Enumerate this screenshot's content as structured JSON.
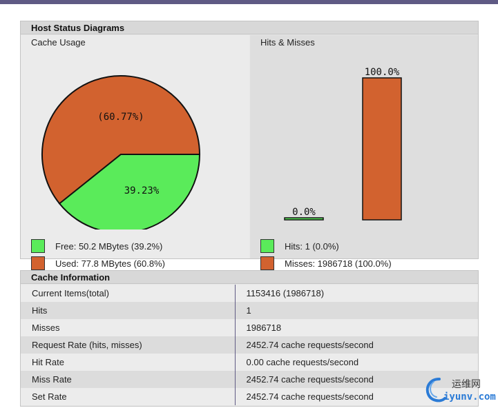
{
  "diagrams": {
    "title": "Host Status Diagrams",
    "cache_usage": {
      "title": "Cache Usage",
      "used_label": "(60.77%)",
      "free_label": "39.23%",
      "legend_free": "Free: 50.2 MBytes (39.2%)",
      "legend_used": "Used: 77.8 MBytes (60.8%)"
    },
    "hits_misses": {
      "title": "Hits & Misses",
      "hits_label": "0.0%",
      "misses_label": "100.0%",
      "legend_hits": "Hits: 1 (0.0%)",
      "legend_misses": "Misses: 1986718 (100.0%)"
    },
    "colors": {
      "used": "#d2622f",
      "free": "#5aeb5a"
    }
  },
  "cache_info": {
    "title": "Cache Information",
    "rows": [
      {
        "key": "Current Items(total)",
        "value": "1153416 (1986718)"
      },
      {
        "key": "Hits",
        "value": "1"
      },
      {
        "key": "Misses",
        "value": "1986718"
      },
      {
        "key": "Request Rate (hits, misses)",
        "value": "2452.74 cache requests/second"
      },
      {
        "key": "Hit Rate",
        "value": "0.00 cache requests/second"
      },
      {
        "key": "Miss Rate",
        "value": "2452.74 cache requests/second"
      },
      {
        "key": "Set Rate",
        "value": "2452.74 cache requests/second"
      }
    ]
  },
  "watermark": {
    "text_cn": "运维网",
    "text_url": "iyunv.com"
  },
  "chart_data": [
    {
      "type": "pie",
      "title": "Cache Usage",
      "categories": [
        "Used",
        "Free"
      ],
      "values": [
        60.77,
        39.23
      ]
    },
    {
      "type": "bar",
      "title": "Hits & Misses",
      "categories": [
        "Hits",
        "Misses"
      ],
      "values": [
        0.0,
        100.0
      ]
    }
  ]
}
